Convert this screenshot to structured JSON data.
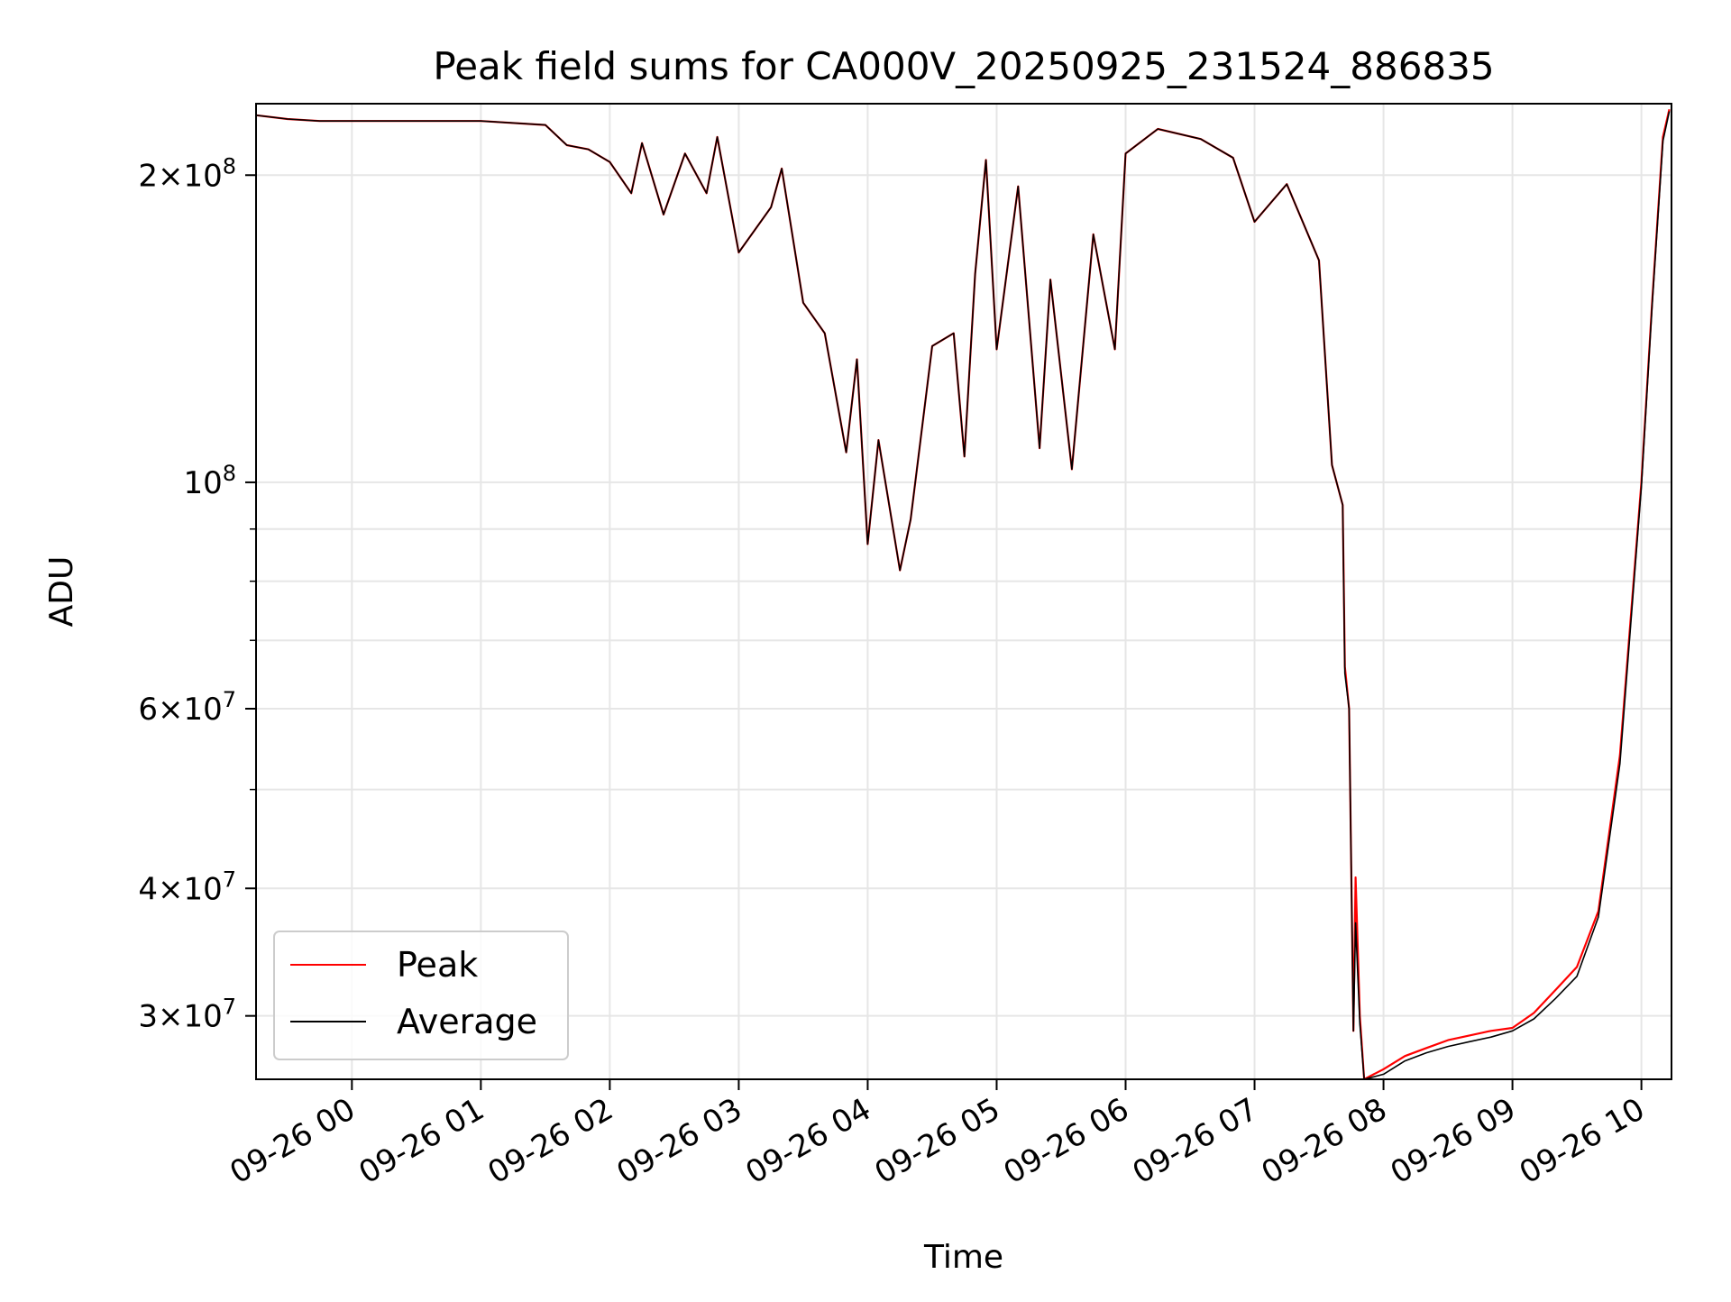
{
  "chart_data": {
    "type": "line",
    "title": "Peak field sums for CA000V_20250925_231524_886835",
    "xlabel": "Time",
    "ylabel": "ADU",
    "y_scale": "log",
    "ylim": [
      26000000,
      235000000
    ],
    "xlim": [
      "2025-09-25 23:15:24",
      "2025-09-26 10:14:00"
    ],
    "grid": true,
    "legend_position": "lower left",
    "x_ticks": [
      {
        "t": "2025-09-26 00:00",
        "label": "09-26 00"
      },
      {
        "t": "2025-09-26 01:00",
        "label": "09-26 01"
      },
      {
        "t": "2025-09-26 02:00",
        "label": "09-26 02"
      },
      {
        "t": "2025-09-26 03:00",
        "label": "09-26 03"
      },
      {
        "t": "2025-09-26 04:00",
        "label": "09-26 04"
      },
      {
        "t": "2025-09-26 05:00",
        "label": "09-26 05"
      },
      {
        "t": "2025-09-26 06:00",
        "label": "09-26 06"
      },
      {
        "t": "2025-09-26 07:00",
        "label": "09-26 07"
      },
      {
        "t": "2025-09-26 08:00",
        "label": "09-26 08"
      },
      {
        "t": "2025-09-26 09:00",
        "label": "09-26 09"
      },
      {
        "t": "2025-09-26 10:00",
        "label": "09-26 10"
      }
    ],
    "y_major_ticks": [
      {
        "v": 30000000,
        "mant": "3",
        "exp": "7"
      },
      {
        "v": 40000000,
        "mant": "4",
        "exp": "7"
      },
      {
        "v": 60000000,
        "mant": "6",
        "exp": "7"
      },
      {
        "v": 100000000,
        "mant": "",
        "exp": "8"
      },
      {
        "v": 200000000,
        "mant": "2",
        "exp": "8"
      }
    ],
    "y_minor_ticks": [
      50000000,
      70000000,
      80000000,
      90000000
    ],
    "series": [
      {
        "name": "Peak",
        "color": "#ff0000",
        "points": [
          [
            "2025-09-25 23:15",
            229000000
          ],
          [
            "2025-09-25 23:30",
            227000000
          ],
          [
            "2025-09-25 23:45",
            226000000
          ],
          [
            "2025-09-26 00:00",
            226000000
          ],
          [
            "2025-09-26 00:30",
            226000000
          ],
          [
            "2025-09-26 01:00",
            226000000
          ],
          [
            "2025-09-26 01:30",
            224000000
          ],
          [
            "2025-09-26 01:40",
            214000000
          ],
          [
            "2025-09-26 01:50",
            212000000
          ],
          [
            "2025-09-26 02:00",
            206000000
          ],
          [
            "2025-09-26 02:10",
            192000000
          ],
          [
            "2025-09-26 02:15",
            215000000
          ],
          [
            "2025-09-26 02:25",
            183000000
          ],
          [
            "2025-09-26 02:35",
            210000000
          ],
          [
            "2025-09-26 02:45",
            192000000
          ],
          [
            "2025-09-26 02:50",
            218000000
          ],
          [
            "2025-09-26 03:00",
            168000000
          ],
          [
            "2025-09-26 03:15",
            186000000
          ],
          [
            "2025-09-26 03:20",
            203000000
          ],
          [
            "2025-09-26 03:30",
            150000000
          ],
          [
            "2025-09-26 03:40",
            140000000
          ],
          [
            "2025-09-26 03:50",
            107000000
          ],
          [
            "2025-09-26 03:55",
            132000000
          ],
          [
            "2025-09-26 04:00",
            87000000
          ],
          [
            "2025-09-26 04:05",
            110000000
          ],
          [
            "2025-09-26 04:15",
            82000000
          ],
          [
            "2025-09-26 04:20",
            92000000
          ],
          [
            "2025-09-26 04:30",
            136000000
          ],
          [
            "2025-09-26 04:40",
            140000000
          ],
          [
            "2025-09-26 04:45",
            106000000
          ],
          [
            "2025-09-26 04:50",
            160000000
          ],
          [
            "2025-09-26 04:55",
            207000000
          ],
          [
            "2025-09-26 05:00",
            135000000
          ],
          [
            "2025-09-26 05:10",
            195000000
          ],
          [
            "2025-09-26 05:20",
            108000000
          ],
          [
            "2025-09-26 05:25",
            158000000
          ],
          [
            "2025-09-26 05:35",
            103000000
          ],
          [
            "2025-09-26 05:45",
            175000000
          ],
          [
            "2025-09-26 05:55",
            135000000
          ],
          [
            "2025-09-26 06:00",
            210000000
          ],
          [
            "2025-09-26 06:15",
            222000000
          ],
          [
            "2025-09-26 06:35",
            217000000
          ],
          [
            "2025-09-26 06:50",
            208000000
          ],
          [
            "2025-09-26 07:00",
            180000000
          ],
          [
            "2025-09-26 07:15",
            196000000
          ],
          [
            "2025-09-26 07:30",
            165000000
          ],
          [
            "2025-09-26 07:36",
            104000000
          ],
          [
            "2025-09-26 07:41",
            95000000
          ],
          [
            "2025-09-26 07:42",
            66000000
          ],
          [
            "2025-09-26 07:44",
            60000000
          ],
          [
            "2025-09-26 07:46",
            29000000
          ],
          [
            "2025-09-26 07:47",
            41000000
          ],
          [
            "2025-09-26 07:49",
            30000000
          ],
          [
            "2025-09-26 07:51",
            26000000
          ],
          [
            "2025-09-26 08:00",
            26600000
          ],
          [
            "2025-09-26 08:10",
            27400000
          ],
          [
            "2025-09-26 08:20",
            27900000
          ],
          [
            "2025-09-26 08:30",
            28400000
          ],
          [
            "2025-09-26 08:40",
            28700000
          ],
          [
            "2025-09-26 08:50",
            29000000
          ],
          [
            "2025-09-26 09:00",
            29200000
          ],
          [
            "2025-09-26 09:10",
            30200000
          ],
          [
            "2025-09-26 09:20",
            31800000
          ],
          [
            "2025-09-26 09:30",
            33500000
          ],
          [
            "2025-09-26 09:40",
            38000000
          ],
          [
            "2025-09-26 09:50",
            54000000
          ],
          [
            "2025-09-26 10:00",
            100000000
          ],
          [
            "2025-09-26 10:05",
            150000000
          ],
          [
            "2025-09-26 10:10",
            218000000
          ],
          [
            "2025-09-26 10:13",
            232000000
          ]
        ]
      },
      {
        "name": "Average",
        "color": "#000000",
        "points": [
          [
            "2025-09-25 23:15",
            229000000
          ],
          [
            "2025-09-25 23:30",
            227000000
          ],
          [
            "2025-09-25 23:45",
            226000000
          ],
          [
            "2025-09-26 00:00",
            226000000
          ],
          [
            "2025-09-26 00:30",
            226000000
          ],
          [
            "2025-09-26 01:00",
            226000000
          ],
          [
            "2025-09-26 01:30",
            224000000
          ],
          [
            "2025-09-26 01:40",
            214000000
          ],
          [
            "2025-09-26 01:50",
            212000000
          ],
          [
            "2025-09-26 02:00",
            206000000
          ],
          [
            "2025-09-26 02:10",
            192000000
          ],
          [
            "2025-09-26 02:15",
            215000000
          ],
          [
            "2025-09-26 02:25",
            183000000
          ],
          [
            "2025-09-26 02:35",
            210000000
          ],
          [
            "2025-09-26 02:45",
            192000000
          ],
          [
            "2025-09-26 02:50",
            218000000
          ],
          [
            "2025-09-26 03:00",
            168000000
          ],
          [
            "2025-09-26 03:15",
            186000000
          ],
          [
            "2025-09-26 03:20",
            203000000
          ],
          [
            "2025-09-26 03:30",
            150000000
          ],
          [
            "2025-09-26 03:40",
            140000000
          ],
          [
            "2025-09-26 03:50",
            107000000
          ],
          [
            "2025-09-26 03:55",
            132000000
          ],
          [
            "2025-09-26 04:00",
            87000000
          ],
          [
            "2025-09-26 04:05",
            110000000
          ],
          [
            "2025-09-26 04:15",
            82000000
          ],
          [
            "2025-09-26 04:20",
            92000000
          ],
          [
            "2025-09-26 04:30",
            136000000
          ],
          [
            "2025-09-26 04:40",
            140000000
          ],
          [
            "2025-09-26 04:45",
            106000000
          ],
          [
            "2025-09-26 04:50",
            160000000
          ],
          [
            "2025-09-26 04:55",
            207000000
          ],
          [
            "2025-09-26 05:00",
            135000000
          ],
          [
            "2025-09-26 05:10",
            195000000
          ],
          [
            "2025-09-26 05:20",
            108000000
          ],
          [
            "2025-09-26 05:25",
            158000000
          ],
          [
            "2025-09-26 05:35",
            103000000
          ],
          [
            "2025-09-26 05:45",
            175000000
          ],
          [
            "2025-09-26 05:55",
            135000000
          ],
          [
            "2025-09-26 06:00",
            210000000
          ],
          [
            "2025-09-26 06:15",
            222000000
          ],
          [
            "2025-09-26 06:35",
            217000000
          ],
          [
            "2025-09-26 06:50",
            208000000
          ],
          [
            "2025-09-26 07:00",
            180000000
          ],
          [
            "2025-09-26 07:15",
            196000000
          ],
          [
            "2025-09-26 07:30",
            165000000
          ],
          [
            "2025-09-26 07:36",
            104000000
          ],
          [
            "2025-09-26 07:41",
            95000000
          ],
          [
            "2025-09-26 07:42",
            65000000
          ],
          [
            "2025-09-26 07:44",
            60000000
          ],
          [
            "2025-09-26 07:46",
            29000000
          ],
          [
            "2025-09-26 07:47",
            37000000
          ],
          [
            "2025-09-26 07:49",
            29500000
          ],
          [
            "2025-09-26 07:51",
            26000000
          ],
          [
            "2025-09-26 08:00",
            26300000
          ],
          [
            "2025-09-26 08:10",
            27100000
          ],
          [
            "2025-09-26 08:20",
            27600000
          ],
          [
            "2025-09-26 08:30",
            28000000
          ],
          [
            "2025-09-26 08:40",
            28300000
          ],
          [
            "2025-09-26 08:50",
            28600000
          ],
          [
            "2025-09-26 09:00",
            29000000
          ],
          [
            "2025-09-26 09:10",
            29800000
          ],
          [
            "2025-09-26 09:20",
            31200000
          ],
          [
            "2025-09-26 09:30",
            32800000
          ],
          [
            "2025-09-26 09:40",
            37500000
          ],
          [
            "2025-09-26 09:50",
            53000000
          ],
          [
            "2025-09-26 10:00",
            99000000
          ],
          [
            "2025-09-26 10:05",
            149000000
          ],
          [
            "2025-09-26 10:10",
            216000000
          ],
          [
            "2025-09-26 10:13",
            231000000
          ]
        ]
      }
    ]
  }
}
